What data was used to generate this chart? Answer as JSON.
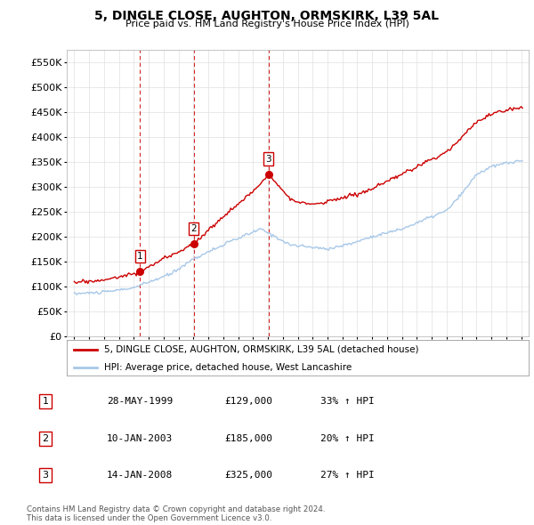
{
  "title": "5, DINGLE CLOSE, AUGHTON, ORMSKIRK, L39 5AL",
  "subtitle": "Price paid vs. HM Land Registry's House Price Index (HPI)",
  "ylim": [
    0,
    575000
  ],
  "yticks": [
    0,
    50000,
    100000,
    150000,
    200000,
    250000,
    300000,
    350000,
    400000,
    450000,
    500000,
    550000
  ],
  "xlim_start": 1994.5,
  "xlim_end": 2025.5,
  "background_color": "#ffffff",
  "grid_color": "#e0e0e0",
  "legend1_label": "5, DINGLE CLOSE, AUGHTON, ORMSKIRK, L39 5AL (detached house)",
  "legend2_label": "HPI: Average price, detached house, West Lancashire",
  "hpi_color": "#a8c8e8",
  "price_color": "#cc0000",
  "vline_color": "#cc0000",
  "table_rows": [
    [
      "1",
      "28-MAY-1999",
      "£129,000",
      "33% ↑ HPI"
    ],
    [
      "2",
      "10-JAN-2003",
      "£185,000",
      "20% ↑ HPI"
    ],
    [
      "3",
      "14-JAN-2008",
      "£325,000",
      "27% ↑ HPI"
    ]
  ],
  "footer_text": "Contains HM Land Registry data © Crown copyright and database right 2024.\nThis data is licensed under the Open Government Licence v3.0.",
  "sale_dates": [
    1999.41,
    2003.03,
    2008.04
  ],
  "sale_prices": [
    129000,
    185000,
    325000
  ],
  "sale_labels": [
    "1",
    "2",
    "3"
  ]
}
